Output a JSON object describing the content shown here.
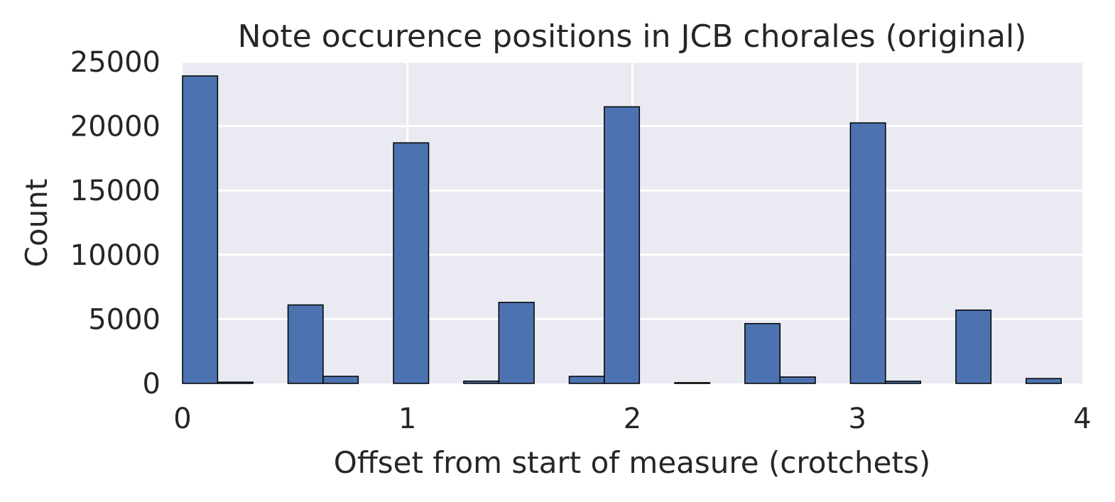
{
  "chart_data": {
    "type": "bar",
    "title": "Note occurence positions in JCB chorales (original)",
    "xlabel": "Offset from start of measure (crotchets)",
    "ylabel": "Count",
    "xlim": [
      0,
      4
    ],
    "ylim": [
      0,
      25000
    ],
    "xticks": [
      0,
      1,
      2,
      3,
      4
    ],
    "yticks": [
      0,
      5000,
      10000,
      15000,
      20000,
      25000
    ],
    "grid": true,
    "bar_color": "#4c72b0",
    "background_color": "#eaeaf2",
    "grid_color": "#ffffff",
    "bins": [
      {
        "x0": 0.0,
        "x1": 0.156,
        "value": 23900
      },
      {
        "x0": 0.156,
        "x1": 0.313,
        "value": 100
      },
      {
        "x0": 0.313,
        "x1": 0.469,
        "value": 0
      },
      {
        "x0": 0.469,
        "x1": 0.625,
        "value": 6100
      },
      {
        "x0": 0.625,
        "x1": 0.781,
        "value": 550
      },
      {
        "x0": 0.781,
        "x1": 0.938,
        "value": 0
      },
      {
        "x0": 0.938,
        "x1": 1.094,
        "value": 18700
      },
      {
        "x0": 1.094,
        "x1": 1.25,
        "value": 0
      },
      {
        "x0": 1.25,
        "x1": 1.406,
        "value": 180
      },
      {
        "x0": 1.406,
        "x1": 1.563,
        "value": 6300
      },
      {
        "x0": 1.563,
        "x1": 1.719,
        "value": 0
      },
      {
        "x0": 1.719,
        "x1": 1.875,
        "value": 550
      },
      {
        "x0": 1.875,
        "x1": 2.031,
        "value": 21500
      },
      {
        "x0": 2.031,
        "x1": 2.188,
        "value": 0
      },
      {
        "x0": 2.188,
        "x1": 2.344,
        "value": 60
      },
      {
        "x0": 2.344,
        "x1": 2.5,
        "value": 0
      },
      {
        "x0": 2.5,
        "x1": 2.656,
        "value": 4650
      },
      {
        "x0": 2.656,
        "x1": 2.813,
        "value": 500
      },
      {
        "x0": 2.813,
        "x1": 2.969,
        "value": 0
      },
      {
        "x0": 2.969,
        "x1": 3.125,
        "value": 20250
      },
      {
        "x0": 3.125,
        "x1": 3.281,
        "value": 170
      },
      {
        "x0": 3.281,
        "x1": 3.438,
        "value": 0
      },
      {
        "x0": 3.438,
        "x1": 3.594,
        "value": 5700
      },
      {
        "x0": 3.594,
        "x1": 3.75,
        "value": 0
      },
      {
        "x0": 3.75,
        "x1": 3.906,
        "value": 380
      }
    ]
  }
}
